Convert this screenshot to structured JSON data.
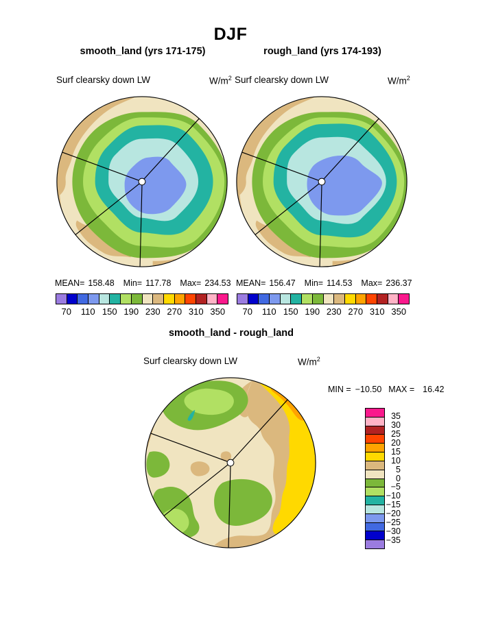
{
  "header": {
    "title": "DJF"
  },
  "panels": {
    "left": {
      "title": "smooth_land (yrs 171-175)",
      "variable": "Surf clearsky down LW",
      "units": "W/m",
      "units_exp": "2",
      "stats": {
        "mean_label": "MEAN=",
        "mean": "158.48",
        "min_label": "Min=",
        "min": "117.78",
        "max_label": "Max=",
        "max": "234.53"
      }
    },
    "right": {
      "title": "rough_land (yrs 174-193)",
      "variable": "Surf clearsky down LW",
      "units": "W/m",
      "units_exp": "2",
      "stats": {
        "mean_label": "MEAN=",
        "mean": "156.47",
        "min_label": "Min=",
        "min": "114.53",
        "max_label": "Max=",
        "max": "236.37"
      }
    },
    "diff": {
      "title": "smooth_land - rough_land",
      "variable": "Surf clearsky down LW",
      "units": "W/m",
      "units_exp": "2",
      "stats": {
        "min_label": "MIN =",
        "min": "−10.50",
        "max_label": "MAX =",
        "max": "16.42"
      }
    }
  },
  "colorbar": {
    "palette": [
      "#9B7CE0",
      "#0000CC",
      "#4169E1",
      "#7D99EE",
      "#B8E6E0",
      "#23B3A2",
      "#B1E063",
      "#7CB83A",
      "#F0E4C0",
      "#DBB87E",
      "#FFD900",
      "#FFA300",
      "#FF4500",
      "#B22222",
      "#FFB3C6",
      "#FA198C"
    ],
    "tick_labels": [
      "70",
      "110",
      "150",
      "190",
      "230",
      "270",
      "310",
      "350"
    ]
  },
  "diff_colorbar": {
    "palette": [
      "#FA198C",
      "#FFB3C6",
      "#B22222",
      "#FF4500",
      "#FFA300",
      "#FFD900",
      "#DBB87E",
      "#F0E4C0",
      "#7CB83A",
      "#B1E063",
      "#23B3A2",
      "#B8E6E0",
      "#7D99EE",
      "#4169E1",
      "#0000CC",
      "#9B7CE0"
    ],
    "tick_labels": [
      "35",
      "30",
      "25",
      "20",
      "15",
      "10",
      "5",
      "0",
      "−5",
      "−10",
      "−15",
      "−20",
      "−25",
      "−30",
      "−35"
    ]
  },
  "chart_data": [
    {
      "type": "heatmap",
      "subtype": "polar-stereographic-contour-map",
      "season": "DJF",
      "title": "smooth_land (yrs 171-175)",
      "variable": "Surf clearsky down LW",
      "units": "W/m2",
      "stats": {
        "mean": 158.48,
        "min": 117.78,
        "max": 234.53
      },
      "contour_levels": [
        70,
        90,
        110,
        130,
        150,
        170,
        190,
        210,
        230,
        250,
        270,
        290,
        310,
        330,
        350
      ],
      "labeled_levels": [
        70,
        110,
        150,
        190,
        230,
        270,
        310,
        350
      ],
      "palette": [
        "#9B7CE0",
        "#0000CC",
        "#4169E1",
        "#7D99EE",
        "#B8E6E0",
        "#23B3A2",
        "#B1E063",
        "#7CB83A",
        "#F0E4C0",
        "#DBB87E",
        "#FFD900",
        "#FFA300",
        "#FF4500",
        "#B22222",
        "#FFB3C6",
        "#FA198C"
      ],
      "legend_position": "below",
      "pattern": "low values (110-150, blue/cyan) at pole center increasing outward through teal/green rings (150-210) to cream/tan (210-250) at the map edge; black sector boundary lines radiate from pole"
    },
    {
      "type": "heatmap",
      "subtype": "polar-stereographic-contour-map",
      "season": "DJF",
      "title": "rough_land (yrs 174-193)",
      "variable": "Surf clearsky down LW",
      "units": "W/m2",
      "stats": {
        "mean": 156.47,
        "min": 114.53,
        "max": 236.37
      },
      "contour_levels": [
        70,
        90,
        110,
        130,
        150,
        170,
        190,
        210,
        230,
        250,
        270,
        290,
        310,
        330,
        350
      ],
      "labeled_levels": [
        70,
        110,
        150,
        190,
        230,
        270,
        310,
        350
      ],
      "palette": [
        "#9B7CE0",
        "#0000CC",
        "#4169E1",
        "#7D99EE",
        "#B8E6E0",
        "#23B3A2",
        "#B1E063",
        "#7CB83A",
        "#F0E4C0",
        "#DBB87E",
        "#FFD900",
        "#FFA300",
        "#FF4500",
        "#B22222",
        "#FFB3C6",
        "#FA198C"
      ],
      "legend_position": "below",
      "pattern": "same concentric structure as smooth_land with the central blue minimum extending farther east"
    },
    {
      "type": "heatmap",
      "subtype": "polar-stereographic-contour-map",
      "title": "smooth_land - rough_land",
      "variable": "Surf clearsky down LW",
      "units": "W/m2",
      "stats": {
        "min": -10.5,
        "max": 16.42
      },
      "contour_levels": [
        -35,
        -30,
        -25,
        -20,
        -15,
        -10,
        -5,
        0,
        5,
        10,
        15,
        20,
        25,
        30,
        35
      ],
      "palette_top_to_bottom": [
        "#FA198C",
        "#FFB3C6",
        "#B22222",
        "#FF4500",
        "#FFA300",
        "#FFD900",
        "#DBB87E",
        "#F0E4C0",
        "#7CB83A",
        "#B1E063",
        "#23B3A2",
        "#B8E6E0",
        "#7D99EE",
        "#4169E1",
        "#0000CC",
        "#9B7CE0"
      ],
      "legend_position": "right",
      "pattern": "mostly 0-5 (cream) with 5-10 tan patches, negative green areas (0 to -10) top and bottom, one small -10 to -15 teal spot upper-left, and a +10 to +20 yellow/orange band on the right edge"
    }
  ]
}
